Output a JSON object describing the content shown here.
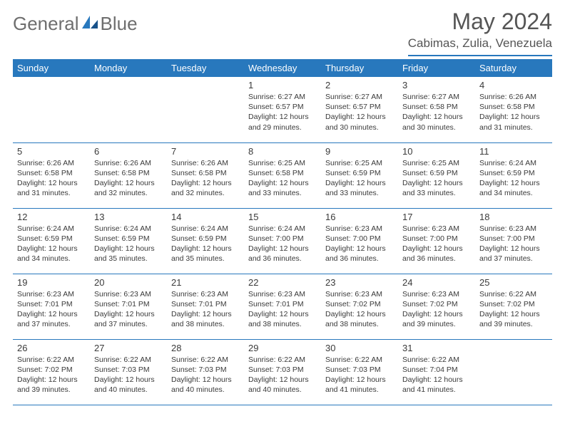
{
  "brand": {
    "name_a": "General",
    "name_b": "Blue"
  },
  "title": "May 2024",
  "location": "Cabimas, Zulia, Venezuela",
  "colors": {
    "accent": "#2878bd",
    "text": "#3a3a3a",
    "muted": "#6e6e6e",
    "bg": "#ffffff"
  },
  "dow": [
    "Sunday",
    "Monday",
    "Tuesday",
    "Wednesday",
    "Thursday",
    "Friday",
    "Saturday"
  ],
  "weeks": [
    [
      null,
      null,
      null,
      {
        "n": "1",
        "sr": "6:27 AM",
        "ss": "6:57 PM",
        "dl": "12 hours and 29 minutes."
      },
      {
        "n": "2",
        "sr": "6:27 AM",
        "ss": "6:57 PM",
        "dl": "12 hours and 30 minutes."
      },
      {
        "n": "3",
        "sr": "6:27 AM",
        "ss": "6:58 PM",
        "dl": "12 hours and 30 minutes."
      },
      {
        "n": "4",
        "sr": "6:26 AM",
        "ss": "6:58 PM",
        "dl": "12 hours and 31 minutes."
      }
    ],
    [
      {
        "n": "5",
        "sr": "6:26 AM",
        "ss": "6:58 PM",
        "dl": "12 hours and 31 minutes."
      },
      {
        "n": "6",
        "sr": "6:26 AM",
        "ss": "6:58 PM",
        "dl": "12 hours and 32 minutes."
      },
      {
        "n": "7",
        "sr": "6:26 AM",
        "ss": "6:58 PM",
        "dl": "12 hours and 32 minutes."
      },
      {
        "n": "8",
        "sr": "6:25 AM",
        "ss": "6:58 PM",
        "dl": "12 hours and 33 minutes."
      },
      {
        "n": "9",
        "sr": "6:25 AM",
        "ss": "6:59 PM",
        "dl": "12 hours and 33 minutes."
      },
      {
        "n": "10",
        "sr": "6:25 AM",
        "ss": "6:59 PM",
        "dl": "12 hours and 33 minutes."
      },
      {
        "n": "11",
        "sr": "6:24 AM",
        "ss": "6:59 PM",
        "dl": "12 hours and 34 minutes."
      }
    ],
    [
      {
        "n": "12",
        "sr": "6:24 AM",
        "ss": "6:59 PM",
        "dl": "12 hours and 34 minutes."
      },
      {
        "n": "13",
        "sr": "6:24 AM",
        "ss": "6:59 PM",
        "dl": "12 hours and 35 minutes."
      },
      {
        "n": "14",
        "sr": "6:24 AM",
        "ss": "6:59 PM",
        "dl": "12 hours and 35 minutes."
      },
      {
        "n": "15",
        "sr": "6:24 AM",
        "ss": "7:00 PM",
        "dl": "12 hours and 36 minutes."
      },
      {
        "n": "16",
        "sr": "6:23 AM",
        "ss": "7:00 PM",
        "dl": "12 hours and 36 minutes."
      },
      {
        "n": "17",
        "sr": "6:23 AM",
        "ss": "7:00 PM",
        "dl": "12 hours and 36 minutes."
      },
      {
        "n": "18",
        "sr": "6:23 AM",
        "ss": "7:00 PM",
        "dl": "12 hours and 37 minutes."
      }
    ],
    [
      {
        "n": "19",
        "sr": "6:23 AM",
        "ss": "7:01 PM",
        "dl": "12 hours and 37 minutes."
      },
      {
        "n": "20",
        "sr": "6:23 AM",
        "ss": "7:01 PM",
        "dl": "12 hours and 37 minutes."
      },
      {
        "n": "21",
        "sr": "6:23 AM",
        "ss": "7:01 PM",
        "dl": "12 hours and 38 minutes."
      },
      {
        "n": "22",
        "sr": "6:23 AM",
        "ss": "7:01 PM",
        "dl": "12 hours and 38 minutes."
      },
      {
        "n": "23",
        "sr": "6:23 AM",
        "ss": "7:02 PM",
        "dl": "12 hours and 38 minutes."
      },
      {
        "n": "24",
        "sr": "6:23 AM",
        "ss": "7:02 PM",
        "dl": "12 hours and 39 minutes."
      },
      {
        "n": "25",
        "sr": "6:22 AM",
        "ss": "7:02 PM",
        "dl": "12 hours and 39 minutes."
      }
    ],
    [
      {
        "n": "26",
        "sr": "6:22 AM",
        "ss": "7:02 PM",
        "dl": "12 hours and 39 minutes."
      },
      {
        "n": "27",
        "sr": "6:22 AM",
        "ss": "7:03 PM",
        "dl": "12 hours and 40 minutes."
      },
      {
        "n": "28",
        "sr": "6:22 AM",
        "ss": "7:03 PM",
        "dl": "12 hours and 40 minutes."
      },
      {
        "n": "29",
        "sr": "6:22 AM",
        "ss": "7:03 PM",
        "dl": "12 hours and 40 minutes."
      },
      {
        "n": "30",
        "sr": "6:22 AM",
        "ss": "7:03 PM",
        "dl": "12 hours and 41 minutes."
      },
      {
        "n": "31",
        "sr": "6:22 AM",
        "ss": "7:04 PM",
        "dl": "12 hours and 41 minutes."
      },
      null
    ]
  ],
  "labels": {
    "sunrise": "Sunrise:",
    "sunset": "Sunset:",
    "daylight": "Daylight:"
  }
}
